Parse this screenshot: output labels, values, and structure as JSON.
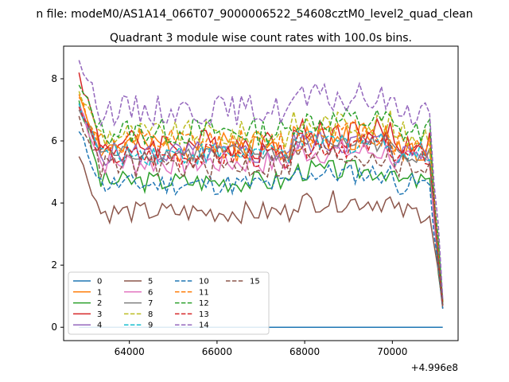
{
  "chart_data": {
    "type": "line",
    "suptitle": "n file: modeM0/AS1A14_066T07_9000006522_54608cztM0_level2_quad_clean",
    "title": "Quadrant 3 module wise count rates with 100.0s bins.",
    "xlabel": "",
    "ylabel": "",
    "x_offset_label": "+4.996e8",
    "xlim": [
      62500,
      71500
    ],
    "ylim": [
      -0.43,
      9.05
    ],
    "x_ticks": [
      64000,
      66000,
      68000,
      70000
    ],
    "x_tick_labels": [
      "64000",
      "66000",
      "68000",
      "70000"
    ],
    "y_ticks": [
      0,
      2,
      4,
      6,
      8
    ],
    "y_tick_labels": [
      "0",
      "2",
      "4",
      "6",
      "8"
    ],
    "x_start": 62850,
    "x_step": 100,
    "n_points": 84,
    "grid": false,
    "legend_placement": "lower-left",
    "legend_columns": 4,
    "series": [
      {
        "name": "0",
        "color": "#1f77b4",
        "dash": "solid",
        "level": 0.0,
        "first": 0.0,
        "last": 0.0,
        "amp": 0.0,
        "seed": 1
      },
      {
        "name": "1",
        "color": "#ff7f0e",
        "dash": "solid",
        "level": 5.8,
        "first": 7.5,
        "last": 0.8,
        "amp": 0.5,
        "seed": 2
      },
      {
        "name": "2",
        "color": "#2ca02c",
        "dash": "solid",
        "level": 4.7,
        "first": 7.3,
        "last": 0.7,
        "amp": 0.35,
        "seed": 3
      },
      {
        "name": "3",
        "color": "#d62728",
        "dash": "solid",
        "level": 5.9,
        "first": 8.2,
        "last": 0.8,
        "amp": 0.5,
        "seed": 4
      },
      {
        "name": "4",
        "color": "#9467bd",
        "dash": "solid",
        "level": 5.6,
        "first": 7.0,
        "last": 0.7,
        "amp": 0.4,
        "seed": 5
      },
      {
        "name": "5",
        "color": "#8c564b",
        "dash": "solid",
        "level": 3.7,
        "first": 5.5,
        "last": 0.6,
        "amp": 0.35,
        "seed": 6
      },
      {
        "name": "6",
        "color": "#e377c2",
        "dash": "solid",
        "level": 5.3,
        "first": 7.2,
        "last": 0.7,
        "amp": 0.4,
        "seed": 7
      },
      {
        "name": "7",
        "color": "#7f7f7f",
        "dash": "solid",
        "level": 5.6,
        "first": 7.0,
        "last": 0.7,
        "amp": 0.3,
        "seed": 8
      },
      {
        "name": "8",
        "color": "#bcbd22",
        "dash": "dashed",
        "level": 6.2,
        "first": 7.6,
        "last": 0.8,
        "amp": 0.45,
        "seed": 9
      },
      {
        "name": "9",
        "color": "#17becf",
        "dash": "dashed",
        "level": 5.6,
        "first": 7.2,
        "last": 0.7,
        "amp": 0.4,
        "seed": 10
      },
      {
        "name": "10",
        "color": "#1f77b4",
        "dash": "dashed",
        "level": 4.6,
        "first": 6.3,
        "last": 0.6,
        "amp": 0.35,
        "seed": 11
      },
      {
        "name": "11",
        "color": "#ff7f0e",
        "dash": "dashed",
        "level": 5.9,
        "first": 7.4,
        "last": 0.8,
        "amp": 0.5,
        "seed": 12
      },
      {
        "name": "12",
        "color": "#2ca02c",
        "dash": "dashed",
        "level": 6.3,
        "first": 7.8,
        "last": 0.8,
        "amp": 0.45,
        "seed": 13
      },
      {
        "name": "13",
        "color": "#d62728",
        "dash": "dashed",
        "level": 5.5,
        "first": 7.1,
        "last": 0.7,
        "amp": 0.4,
        "seed": 14
      },
      {
        "name": "14",
        "color": "#9467bd",
        "dash": "dashed",
        "level": 7.0,
        "first": 8.6,
        "last": 0.9,
        "amp": 0.5,
        "seed": 15
      },
      {
        "name": "15",
        "color": "#8c564b",
        "dash": "dashed",
        "level": 5.2,
        "first": 6.8,
        "last": 0.7,
        "amp": 0.45,
        "seed": 16
      }
    ]
  }
}
